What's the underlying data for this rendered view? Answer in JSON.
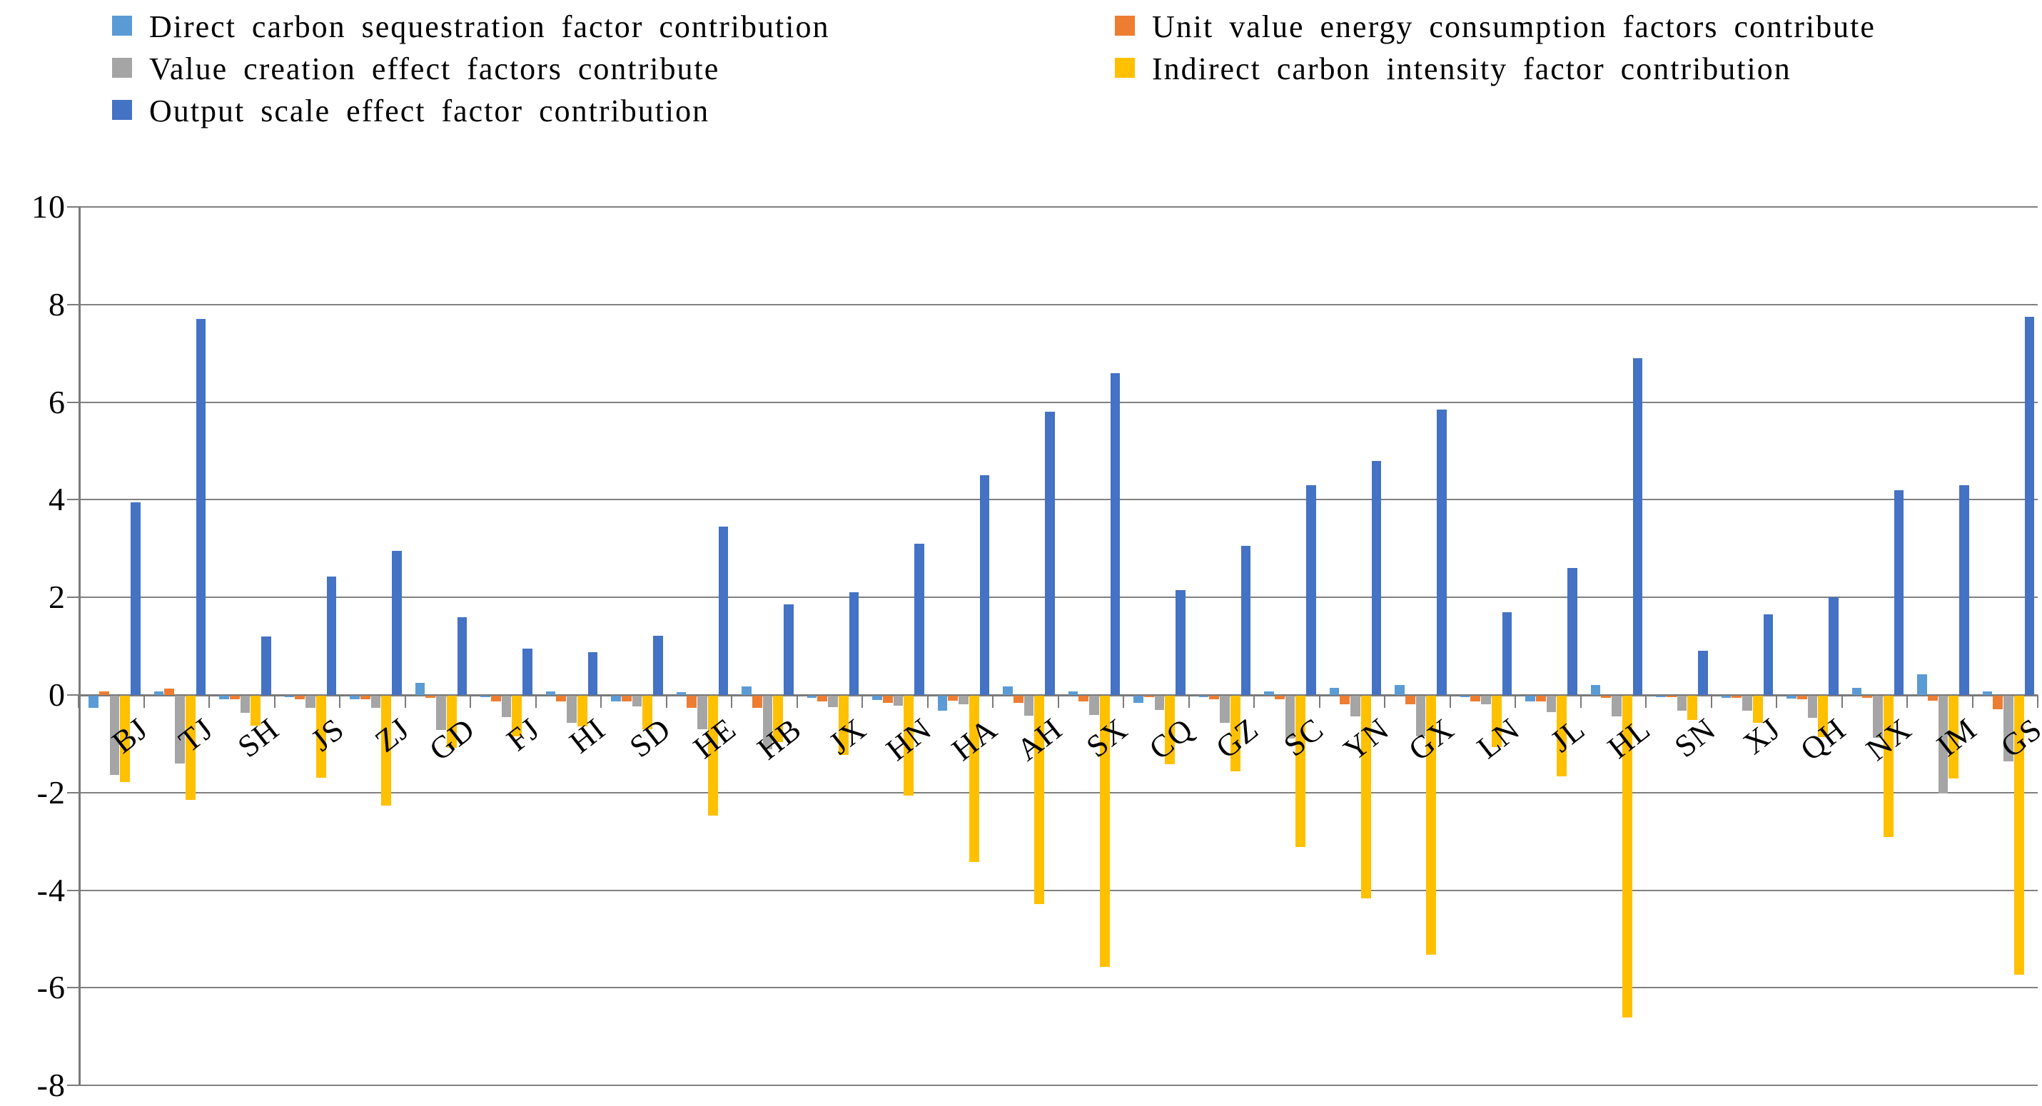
{
  "chart_data": {
    "type": "bar",
    "title": "",
    "xlabel": "",
    "ylabel": "",
    "ylim": [
      -8,
      10
    ],
    "ytick_step": 2,
    "yticks": [
      10,
      8,
      6,
      4,
      2,
      0,
      -2,
      -4,
      -6,
      -8
    ],
    "grid": true,
    "legend_position": "top",
    "background_color": "#FFFFFF",
    "gridline_color": "#808080",
    "categories": [
      "BJ",
      "TJ",
      "SH",
      "JS",
      "ZJ",
      "GD",
      "FJ",
      "HI",
      "SD",
      "HE",
      "HB",
      "JX",
      "HN",
      "HA",
      "AH",
      "SX",
      "CQ",
      "GZ",
      "SC",
      "YN",
      "GX",
      "LN",
      "JL",
      "HL",
      "SN",
      "XJ",
      "QH",
      "NX",
      "IM",
      "GS"
    ],
    "series": [
      {
        "name": "Direct carbon sequestration factor contribution",
        "color": "#5B9BD5",
        "values": [
          -0.25,
          0.07,
          -0.08,
          -0.03,
          -0.08,
          0.25,
          -0.03,
          0.07,
          -0.12,
          0.06,
          0.17,
          -0.05,
          -0.09,
          -0.3,
          0.17,
          0.07,
          -0.15,
          -0.03,
          0.08,
          0.15,
          0.2,
          -0.03,
          -0.12,
          0.2,
          -0.03,
          -0.05,
          -0.06,
          0.15,
          0.42,
          0.07
        ]
      },
      {
        "name": "Unit value energy consumption factors contribute",
        "color": "#ED7D31",
        "values": [
          0.07,
          0.13,
          -0.08,
          -0.08,
          -0.08,
          -0.04,
          -0.12,
          -0.12,
          -0.12,
          -0.25,
          -0.25,
          -0.11,
          -0.14,
          -0.1,
          -0.15,
          -0.12,
          -0.03,
          -0.07,
          -0.07,
          -0.17,
          -0.17,
          -0.12,
          -0.12,
          -0.05,
          -0.03,
          -0.05,
          -0.08,
          -0.05,
          -0.1,
          -0.28
        ]
      },
      {
        "name": "Value creation effect factors contribute",
        "color": "#A5A5A5",
        "values": [
          -1.62,
          -1.39,
          -0.35,
          -0.25,
          -0.25,
          -0.7,
          -0.44,
          -0.56,
          -0.22,
          -0.69,
          -1.09,
          -0.23,
          -0.2,
          -0.17,
          -0.41,
          -0.39,
          -0.29,
          -0.56,
          -0.88,
          -0.43,
          -0.83,
          -0.17,
          -0.33,
          -0.43,
          -0.3,
          -0.3,
          -0.45,
          -0.86,
          -2.0,
          -1.35
        ]
      },
      {
        "name": "Indirect carbon intensity factor contribution",
        "color": "#FFC000",
        "values": [
          -1.77,
          -2.13,
          -0.62,
          -1.68,
          -2.25,
          -1.07,
          -0.83,
          -0.63,
          -0.69,
          -2.45,
          -0.95,
          -1.21,
          -2.05,
          -3.4,
          -4.27,
          -5.55,
          -1.4,
          -1.55,
          -3.1,
          -4.15,
          -5.3,
          -1.05,
          -1.65,
          -6.6,
          -0.5,
          -0.55,
          -0.85,
          -2.9,
          -1.7,
          -5.72
        ]
      },
      {
        "name": "Output scale effect factor contribution",
        "color": "#4472C4",
        "values": [
          3.95,
          7.7,
          1.2,
          2.42,
          2.95,
          1.6,
          0.95,
          0.87,
          1.22,
          3.45,
          1.85,
          2.1,
          3.1,
          4.5,
          5.8,
          6.6,
          2.15,
          3.05,
          4.3,
          4.8,
          5.85,
          1.7,
          2.6,
          6.9,
          0.9,
          1.65,
          2.0,
          4.2,
          4.3,
          7.75
        ]
      }
    ]
  }
}
